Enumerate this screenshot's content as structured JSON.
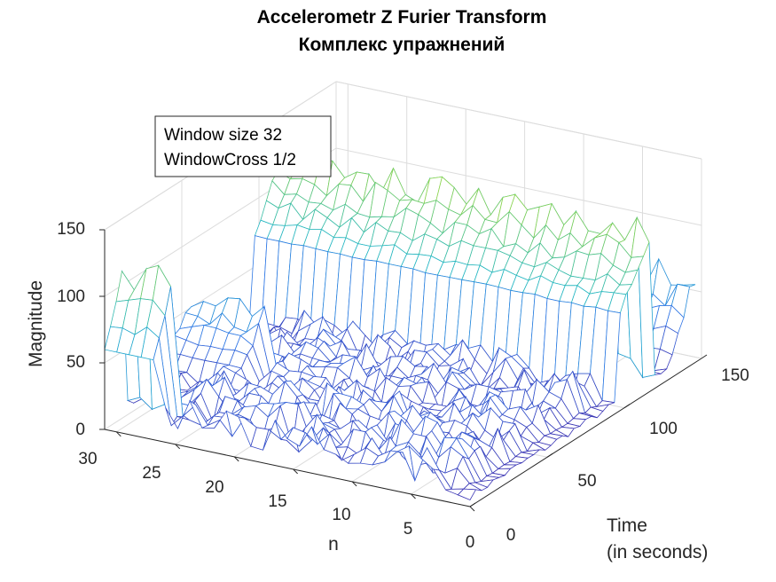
{
  "chart_data": {
    "type": "surface",
    "title": "Accelerometr Z Furier Transform",
    "subtitle": "Комплекс упражнений",
    "xlabel": "n",
    "ylabel_lines": [
      "Time",
      "(in seconds)"
    ],
    "zlabel": "Magnitude",
    "n_ticks": [
      "0",
      "5",
      "10",
      "15",
      "20",
      "25",
      "30"
    ],
    "time_ticks": [
      "0",
      "50",
      "100",
      "150"
    ],
    "z_ticks": [
      "0",
      "50",
      "100",
      "150"
    ],
    "n_range": [
      0,
      31
    ],
    "time_range": [
      0,
      150
    ],
    "z_range": [
      0,
      150
    ],
    "annotation": [
      "Window size 32",
      "WindowCross 1/2"
    ],
    "grid": true,
    "colormap": "parula",
    "colormap_stops": [
      "#3e26a8",
      "#2f74e6",
      "#1fb5c9",
      "#76cd5a",
      "#f9fb14"
    ],
    "n_count": 31,
    "time_count": 40,
    "time_max": 146,
    "segments": [
      {
        "t_start": 0,
        "t_end": 12,
        "n_from": 26,
        "level": 60,
        "peak": 125
      },
      {
        "t_start": 40,
        "t_end": 58,
        "n_from": 24,
        "level": 25,
        "peak": 70
      },
      {
        "t_start": 96,
        "t_end": 118,
        "n_from": 0,
        "level": 70,
        "peak": 135
      },
      {
        "t_start": 128,
        "t_end": 146,
        "n_from": 0,
        "level": 10,
        "peak": 75
      }
    ],
    "noise_level": 18,
    "base_level": 5
  }
}
